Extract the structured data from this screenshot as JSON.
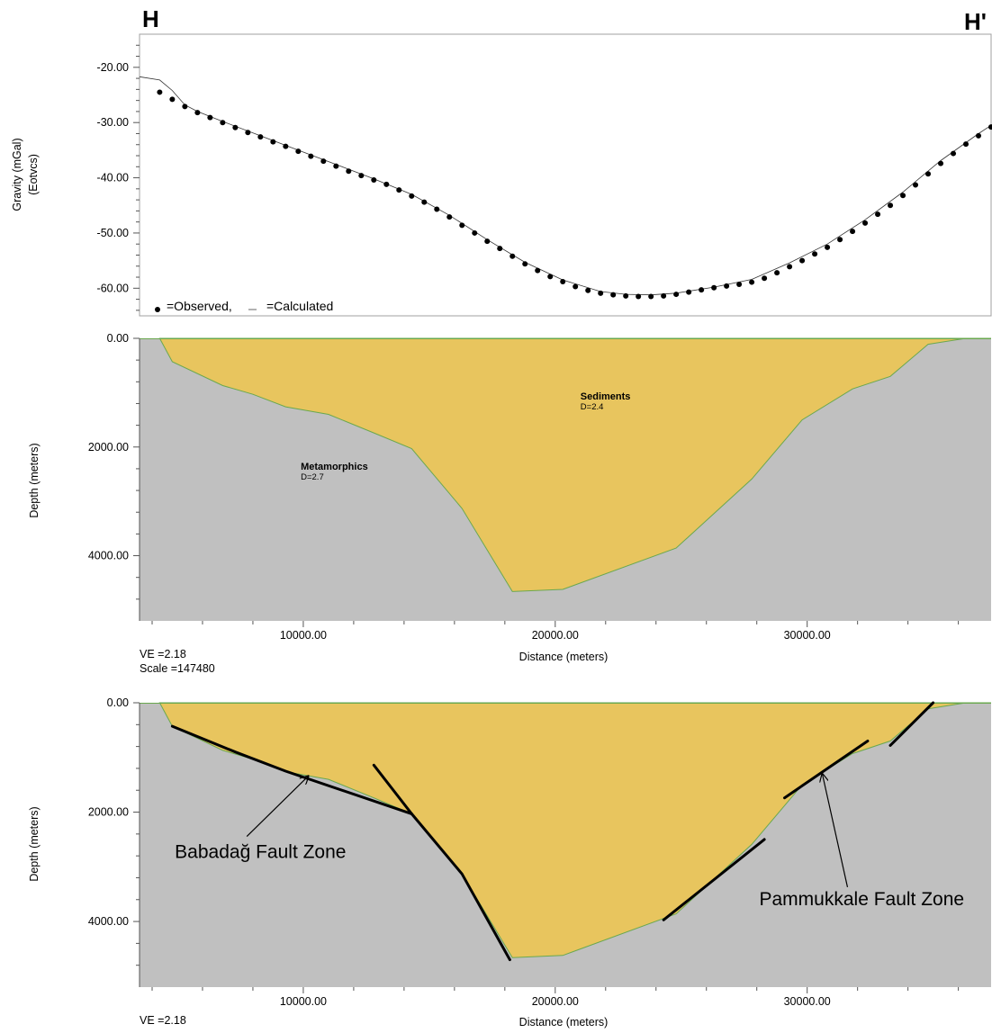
{
  "corner_labels": {
    "left": "H",
    "right": "H'"
  },
  "chart_data": [
    {
      "type": "scatter",
      "ylabel": "Gravity (mGal)",
      "ylabel_sub": "(Eotvcs)",
      "y_ticks": [
        "-20.00",
        "-30.00",
        "-40.00",
        "-50.00",
        "-60.00"
      ],
      "ylim": [
        -65,
        -14
      ],
      "xlim": [
        3500,
        37300
      ],
      "legend": {
        "observed_label": "=Observed,",
        "calculated_label": "=Calculated",
        "placement": "bottom-left"
      },
      "series": [
        {
          "name": "Observed",
          "points": [
            [
              4300,
              -24.5
            ],
            [
              4800,
              -25.8
            ],
            [
              5300,
              -27.1
            ],
            [
              5800,
              -28.2
            ],
            [
              6300,
              -29.1
            ],
            [
              6800,
              -30.0
            ],
            [
              7300,
              -30.9
            ],
            [
              7800,
              -31.8
            ],
            [
              8300,
              -32.6
            ],
            [
              8800,
              -33.5
            ],
            [
              9300,
              -34.3
            ],
            [
              9800,
              -35.2
            ],
            [
              10300,
              -36.1
            ],
            [
              10800,
              -37.0
            ],
            [
              11300,
              -37.9
            ],
            [
              11800,
              -38.8
            ],
            [
              12300,
              -39.6
            ],
            [
              12800,
              -40.4
            ],
            [
              13300,
              -41.2
            ],
            [
              13800,
              -42.2
            ],
            [
              14300,
              -43.3
            ],
            [
              14800,
              -44.4
            ],
            [
              15300,
              -45.7
            ],
            [
              15800,
              -47.1
            ],
            [
              16300,
              -48.6
            ],
            [
              16800,
              -50.0
            ],
            [
              17300,
              -51.5
            ],
            [
              17800,
              -52.8
            ],
            [
              18300,
              -54.2
            ],
            [
              18800,
              -55.6
            ],
            [
              19300,
              -56.8
            ],
            [
              19800,
              -57.9
            ],
            [
              20300,
              -58.8
            ],
            [
              20800,
              -59.7
            ],
            [
              21300,
              -60.4
            ],
            [
              21800,
              -60.9
            ],
            [
              22300,
              -61.2
            ],
            [
              22800,
              -61.4
            ],
            [
              23300,
              -61.5
            ],
            [
              23800,
              -61.5
            ],
            [
              24300,
              -61.4
            ],
            [
              24800,
              -61.1
            ],
            [
              25300,
              -60.7
            ],
            [
              25800,
              -60.3
            ],
            [
              26300,
              -59.9
            ],
            [
              26800,
              -59.6
            ],
            [
              27300,
              -59.3
            ],
            [
              27800,
              -58.9
            ],
            [
              28300,
              -58.2
            ],
            [
              28800,
              -57.2
            ],
            [
              29300,
              -56.1
            ],
            [
              29800,
              -55.0
            ],
            [
              30300,
              -53.8
            ],
            [
              30800,
              -52.6
            ],
            [
              31300,
              -51.2
            ],
            [
              31800,
              -49.7
            ],
            [
              32300,
              -48.2
            ],
            [
              32800,
              -46.6
            ],
            [
              33300,
              -45.0
            ],
            [
              33800,
              -43.2
            ],
            [
              34300,
              -41.3
            ],
            [
              34800,
              -39.3
            ],
            [
              35300,
              -37.4
            ],
            [
              35800,
              -35.6
            ],
            [
              36300,
              -33.9
            ],
            [
              36800,
              -32.4
            ],
            [
              37300,
              -30.8
            ]
          ]
        },
        {
          "name": "Calculated",
          "points": [
            [
              3500,
              -21.7
            ],
            [
              4300,
              -22.3
            ],
            [
              4800,
              -24.2
            ],
            [
              5300,
              -26.8
            ],
            [
              5800,
              -28.0
            ],
            [
              6800,
              -29.8
            ],
            [
              8300,
              -32.4
            ],
            [
              9800,
              -35.0
            ],
            [
              11300,
              -37.6
            ],
            [
              12800,
              -40.2
            ],
            [
              14300,
              -43.0
            ],
            [
              15800,
              -46.8
            ],
            [
              17300,
              -51.2
            ],
            [
              18800,
              -55.3
            ],
            [
              20300,
              -58.5
            ],
            [
              21800,
              -60.6
            ],
            [
              22800,
              -61.1
            ],
            [
              23800,
              -61.2
            ],
            [
              24800,
              -60.9
            ],
            [
              26300,
              -59.8
            ],
            [
              27800,
              -58.4
            ],
            [
              29300,
              -55.4
            ],
            [
              30800,
              -52.0
            ],
            [
              32300,
              -47.6
            ],
            [
              33800,
              -42.6
            ],
            [
              35300,
              -36.9
            ],
            [
              36800,
              -32.0
            ],
            [
              37300,
              -30.5
            ]
          ]
        }
      ]
    },
    {
      "type": "area",
      "xlabel": "Distance (meters)",
      "ylabel": "Depth (meters)",
      "x_ticks": [
        "10000.00",
        "20000.00",
        "30000.00"
      ],
      "x_tick_values": [
        10000,
        20000,
        30000
      ],
      "y_ticks": [
        "0.00",
        "2000.00",
        "4000.00"
      ],
      "y_tick_values": [
        0,
        2000,
        4000
      ],
      "xlim": [
        3500,
        37300
      ],
      "ylim": [
        5200,
        0
      ],
      "units": [
        {
          "name": "Sediments",
          "density": "D=2.4",
          "color": "#e8c55e",
          "label_at": [
            21000,
            1130
          ]
        },
        {
          "name": "Metamorphics",
          "density": "D=2.7",
          "color": "#c0c0c0",
          "label_at": [
            9900,
            2420
          ]
        }
      ],
      "boundary": [
        [
          4300,
          0
        ],
        [
          4800,
          430
        ],
        [
          6800,
          870
        ],
        [
          8000,
          1030
        ],
        [
          9300,
          1260
        ],
        [
          11000,
          1400
        ],
        [
          12800,
          1740
        ],
        [
          14300,
          2030
        ],
        [
          16300,
          3130
        ],
        [
          18300,
          4660
        ],
        [
          20300,
          4620
        ],
        [
          24800,
          3860
        ],
        [
          27800,
          2590
        ],
        [
          29800,
          1500
        ],
        [
          31800,
          930
        ],
        [
          33300,
          700
        ],
        [
          34800,
          110
        ],
        [
          36300,
          0
        ],
        [
          37300,
          0
        ]
      ],
      "ve_text": "VE =2.18",
      "scale_text": "Scale =147480"
    },
    {
      "type": "area",
      "xlabel": "Distance (meters)",
      "ylabel": "Depth (meters)",
      "x_ticks": [
        "10000.00",
        "20000.00",
        "30000.00"
      ],
      "x_tick_values": [
        10000,
        20000,
        30000
      ],
      "y_ticks": [
        "0.00",
        "2000.00",
        "4000.00"
      ],
      "y_tick_values": [
        0,
        2000,
        4000
      ],
      "xlim": [
        3500,
        37300
      ],
      "ylim": [
        5200,
        0
      ],
      "boundary": [
        [
          4300,
          0
        ],
        [
          4800,
          430
        ],
        [
          6800,
          870
        ],
        [
          8000,
          1030
        ],
        [
          9300,
          1260
        ],
        [
          11000,
          1400
        ],
        [
          12800,
          1740
        ],
        [
          14300,
          2030
        ],
        [
          16300,
          3130
        ],
        [
          18300,
          4660
        ],
        [
          20300,
          4620
        ],
        [
          24800,
          3860
        ],
        [
          27800,
          2590
        ],
        [
          29800,
          1500
        ],
        [
          31800,
          930
        ],
        [
          33300,
          700
        ],
        [
          34800,
          110
        ],
        [
          36300,
          0
        ],
        [
          37300,
          0
        ]
      ],
      "faults": [
        [
          [
            4800,
            430
          ],
          [
            7300,
            900
          ],
          [
            9300,
            1250
          ],
          [
            14300,
            2030
          ]
        ],
        [
          [
            12800,
            1140
          ],
          [
            14300,
            2030
          ],
          [
            16300,
            3130
          ],
          [
            18200,
            4700
          ]
        ],
        [
          [
            24300,
            3970
          ],
          [
            28300,
            2500
          ]
        ],
        [
          [
            29100,
            1740
          ],
          [
            32400,
            700
          ]
        ],
        [
          [
            33300,
            780
          ],
          [
            35000,
            0
          ]
        ]
      ],
      "annotations": [
        {
          "text": "Babadağ Fault Zone",
          "text_at": [
            4900,
            2840
          ],
          "arrow_to": [
            10200,
            1340
          ]
        },
        {
          "text": "Pammukkale Fault Zone",
          "text_at": [
            28100,
            3700
          ],
          "arrow_to": [
            30600,
            1300
          ]
        }
      ],
      "ve_text": "VE =2.18"
    }
  ]
}
